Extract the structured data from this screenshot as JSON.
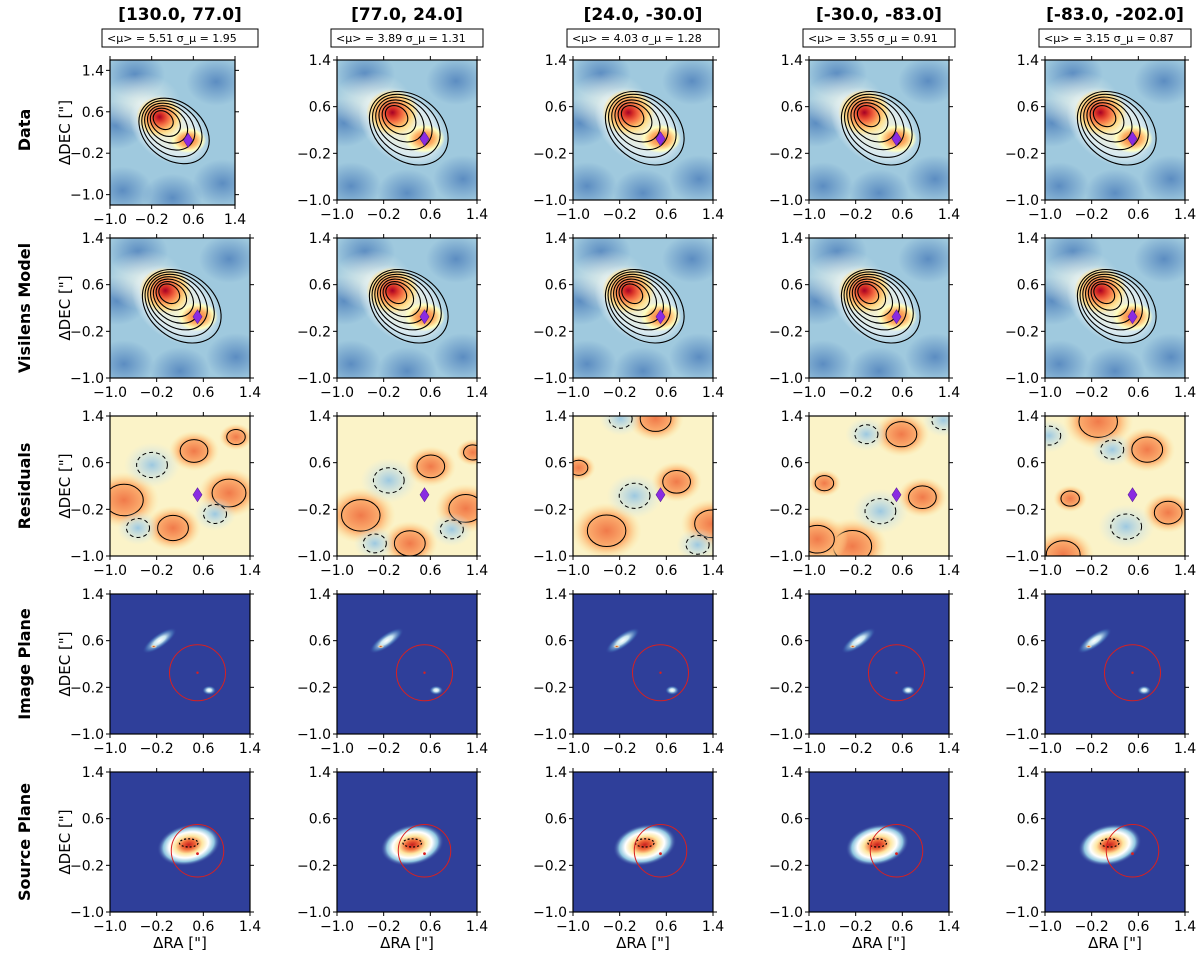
{
  "figure": {
    "columns": [
      {
        "title": "[130.0, 77.0]",
        "mu_label": "<μ> = 5.51",
        "sigma_label": "σ_μ = 1.95"
      },
      {
        "title": "[77.0, 24.0]",
        "mu_label": "<μ> = 3.89",
        "sigma_label": "σ_μ = 1.31"
      },
      {
        "title": "[24.0, -30.0]",
        "mu_label": "<μ> = 4.03",
        "sigma_label": "σ_μ = 1.28"
      },
      {
        "title": "[-30.0, -83.0]",
        "mu_label": "<μ> = 3.55",
        "sigma_label": "σ_μ = 0.91"
      },
      {
        "title": "[-83.0, -202.0]",
        "mu_label": "<μ> = 3.15",
        "sigma_label": "σ_μ = 0.87"
      }
    ],
    "rows": [
      {
        "label": "Data",
        "kind": "data"
      },
      {
        "label": "Visilens Model",
        "kind": "model"
      },
      {
        "label": "Residuals",
        "kind": "residual"
      },
      {
        "label": "Image Plane",
        "kind": "image"
      },
      {
        "label": "Source Plane",
        "kind": "source"
      }
    ],
    "ylabel": "ΔDEC [\"]",
    "xlabel": "ΔRA [\"]",
    "colors": {
      "marker": "#8a2be2",
      "circle": "#d92020",
      "bg_blue": "#2f3f9a"
    }
  },
  "chart_data": {
    "type": "heatmap",
    "title": "",
    "xlabel": "ΔRA [\"]",
    "ylabel": "ΔDEC [\"]",
    "xlim": [
      -1.0,
      1.4
    ],
    "ylim": [
      -1.0,
      1.4
    ],
    "xticks": [
      "-1.0",
      "-0.2",
      "0.6",
      "1.4"
    ],
    "yticks": [
      "1.4",
      "0.6",
      "-0.2",
      "-1.0"
    ],
    "data_zoom_first_panel": {
      "xlim": [
        -1.0,
        1.4
      ],
      "ylim": [
        -1.2,
        1.6
      ],
      "yticks": [
        "1.4",
        "0.6",
        "-0.2",
        "-1.0"
      ]
    },
    "lens_position": [
      0.5,
      0.05
    ],
    "bin_titles": [
      "[130.0, 77.0]",
      "[77.0, 24.0]",
      "[24.0, -30.0]",
      "[-30.0, -83.0]",
      "[-83.0, -202.0]"
    ],
    "mean_magnification": [
      5.51,
      3.89,
      4.03,
      3.55,
      3.15
    ],
    "sigma_magnification": [
      1.95,
      1.31,
      1.28,
      0.91,
      0.87
    ]
  }
}
